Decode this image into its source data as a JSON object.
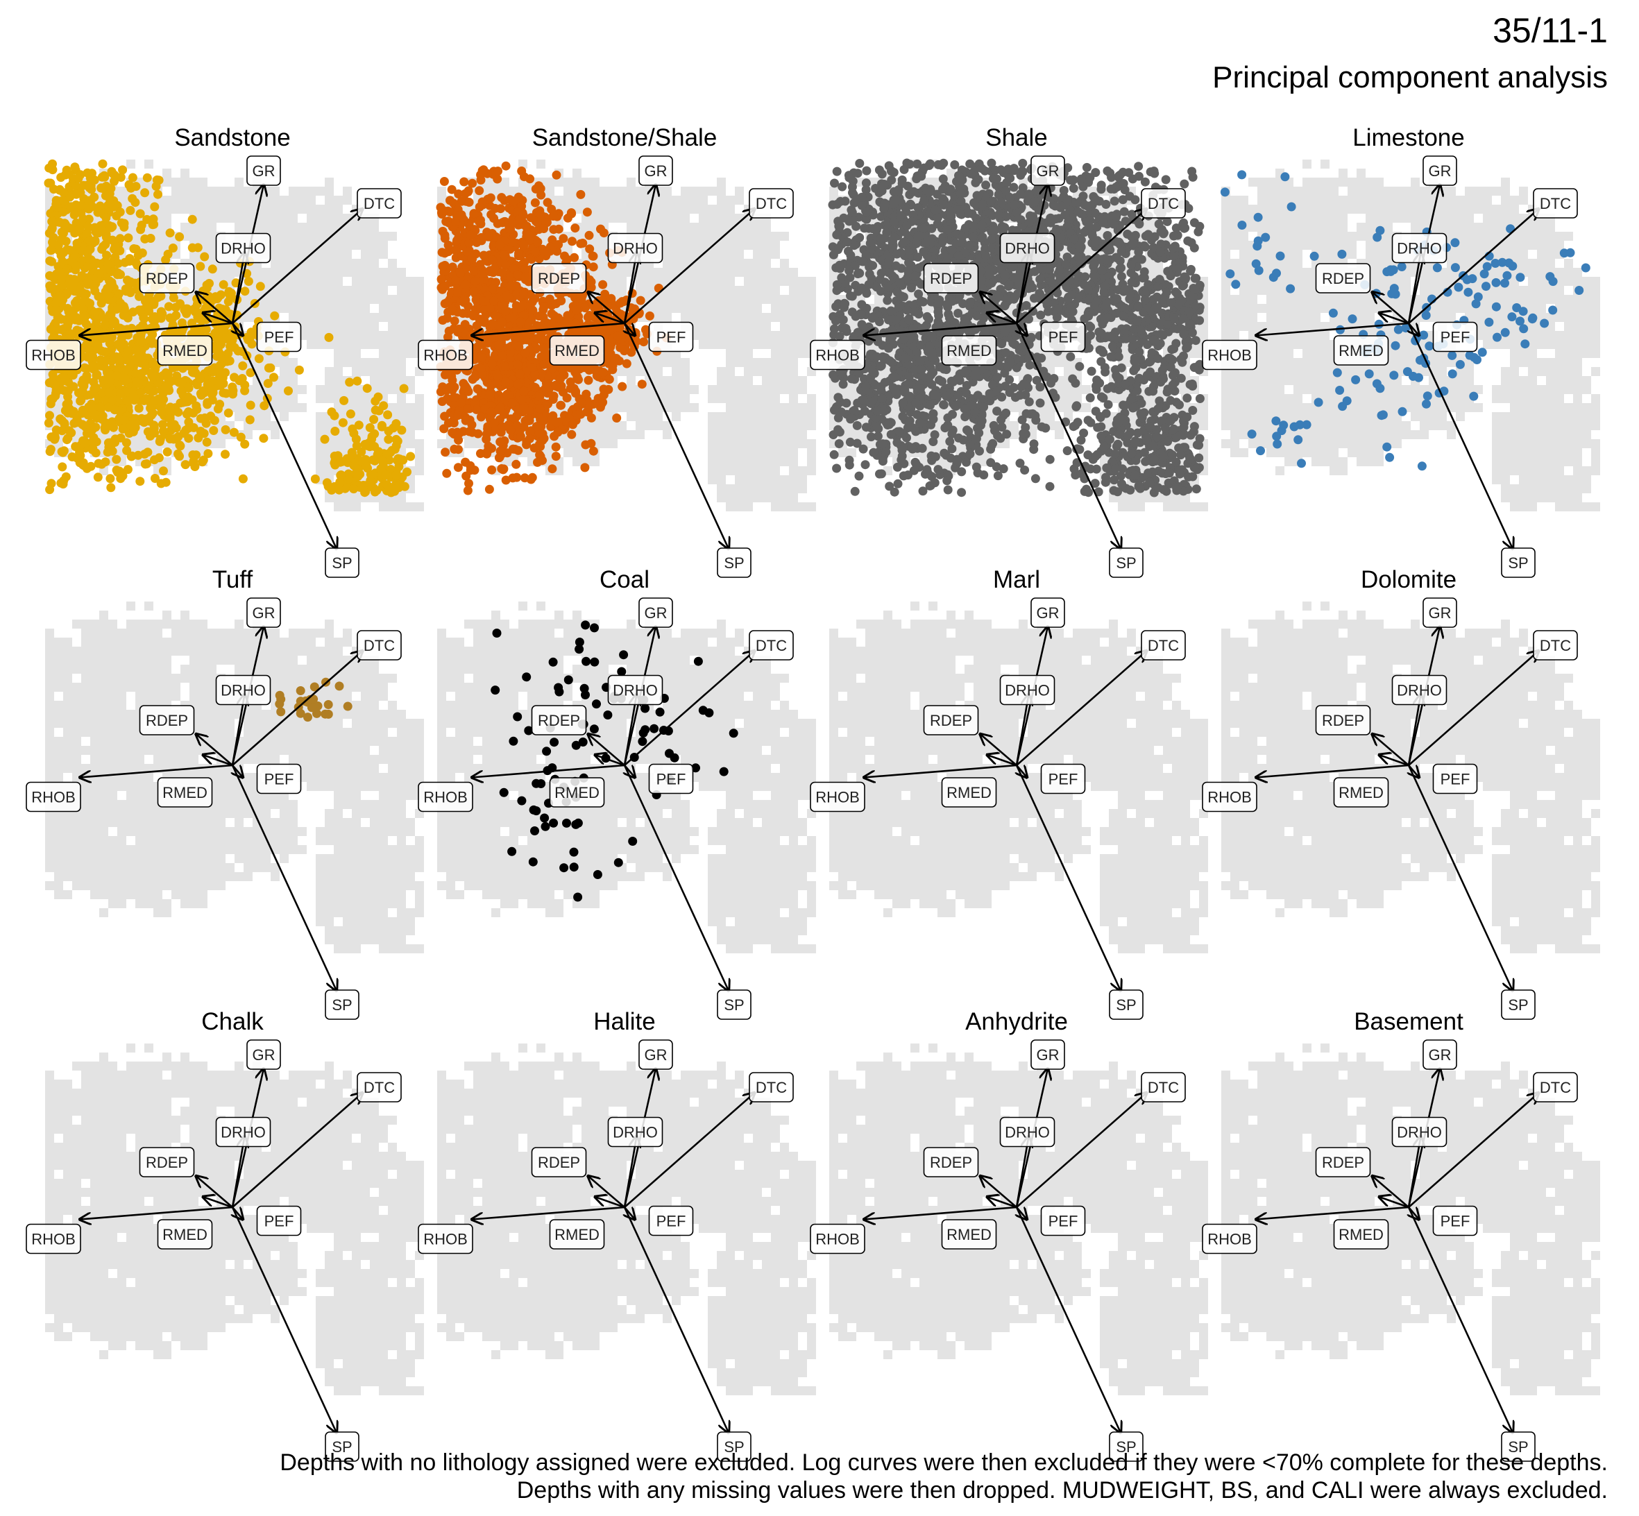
{
  "header": {
    "title": "35/11-1",
    "subtitle": "Principal component analysis"
  },
  "caption": {
    "line1": "Depths with no lithology assigned were excluded. Log curves were then excluded if they were <70% complete for these depths.",
    "line2": "Depths with any missing values were then dropped. MUDWEIGHT, BS, and CALI were always excluded."
  },
  "chart_data": {
    "type": "scatter",
    "subtype": "pca-biplot-small-multiples",
    "background_points_color": "#e3e3e3",
    "axes_visible": false,
    "grid": false,
    "loadings": [
      {
        "name": "GR",
        "pc1": 0.18,
        "pc2": 0.8
      },
      {
        "name": "DTC",
        "pc1": 0.75,
        "pc2": 0.66
      },
      {
        "name": "DRHO",
        "pc1": 0.07,
        "pc2": 0.41
      },
      {
        "name": "RDEP",
        "pc1": -0.21,
        "pc2": 0.18
      },
      {
        "name": "PEF",
        "pc1": 0.06,
        "pc2": -0.07
      },
      {
        "name": "RHOB",
        "pc1": -0.88,
        "pc2": -0.07
      },
      {
        "name": "RMED",
        "pc1": -0.17,
        "pc2": 0.06
      },
      {
        "name": "SP",
        "pc1": 0.6,
        "pc2": -1.3
      }
    ],
    "panels": [
      {
        "name": "Sandstone",
        "color": "#E6AB02",
        "n_points": 2600,
        "clusters": [
          {
            "x": -1.05,
            "y": 0.3,
            "sx": 0.35,
            "sy": 0.28,
            "w": 0.28
          },
          {
            "x": -0.7,
            "y": -0.35,
            "sx": 0.38,
            "sy": 0.3,
            "w": 0.4
          },
          {
            "x": -0.85,
            "y": 0.75,
            "sx": 0.18,
            "sy": 0.22,
            "w": 0.07
          },
          {
            "x": 0.82,
            "y": -1.05,
            "sx": 0.14,
            "sy": 0.28,
            "w": 0.15
          },
          {
            "x": 0.45,
            "y": -1.35,
            "sx": 0.12,
            "sy": 0.08,
            "w": 0.05
          },
          {
            "x": -0.1,
            "y": -0.05,
            "sx": 0.12,
            "sy": 0.15,
            "w": 0.05
          }
        ]
      },
      {
        "name": "Sandstone/Shale",
        "color": "#D95F02",
        "n_points": 1800,
        "clusters": [
          {
            "x": -0.8,
            "y": 0.35,
            "sx": 0.28,
            "sy": 0.3,
            "w": 0.45
          },
          {
            "x": -0.65,
            "y": -0.35,
            "sx": 0.26,
            "sy": 0.25,
            "w": 0.4
          },
          {
            "x": -0.15,
            "y": -0.05,
            "sx": 0.14,
            "sy": 0.15,
            "w": 0.15
          }
        ]
      },
      {
        "name": "Shale",
        "color": "#616161",
        "n_points": 3600,
        "clusters": [
          {
            "x": -0.55,
            "y": 0.4,
            "sx": 0.45,
            "sy": 0.38,
            "w": 0.3
          },
          {
            "x": 0.3,
            "y": 0.45,
            "sx": 0.45,
            "sy": 0.3,
            "w": 0.25
          },
          {
            "x": -0.55,
            "y": -0.4,
            "sx": 0.4,
            "sy": 0.32,
            "w": 0.2
          },
          {
            "x": 0.8,
            "y": -0.75,
            "sx": 0.22,
            "sy": 0.35,
            "w": 0.15
          },
          {
            "x": 0.9,
            "y": 0.05,
            "sx": 0.35,
            "sy": 0.14,
            "w": 0.1
          }
        ]
      },
      {
        "name": "Limestone",
        "color": "#3A7DB8",
        "n_points": 170,
        "clusters": [
          {
            "x": 0.35,
            "y": 0.25,
            "sx": 0.35,
            "sy": 0.22,
            "w": 0.45
          },
          {
            "x": -0.1,
            "y": -0.25,
            "sx": 0.28,
            "sy": 0.25,
            "w": 0.3
          },
          {
            "x": -0.95,
            "y": 0.55,
            "sx": 0.18,
            "sy": 0.3,
            "w": 0.2
          },
          {
            "x": -0.7,
            "y": -0.65,
            "sx": 0.1,
            "sy": 0.06,
            "w": 0.05
          }
        ]
      },
      {
        "name": "Tuff",
        "color": "#B07E24",
        "n_points": 25,
        "clusters": [
          {
            "x": 0.45,
            "y": 0.35,
            "sx": 0.09,
            "sy": 0.06,
            "w": 1.0
          }
        ]
      },
      {
        "name": "Coal",
        "color": "#000000",
        "n_points": 90,
        "clusters": [
          {
            "x": -0.3,
            "y": 0.4,
            "sx": 0.22,
            "sy": 0.35,
            "w": 0.45
          },
          {
            "x": 0.15,
            "y": 0.2,
            "sx": 0.3,
            "sy": 0.18,
            "w": 0.25
          },
          {
            "x": -0.35,
            "y": -0.35,
            "sx": 0.15,
            "sy": 0.22,
            "w": 0.3
          }
        ]
      },
      {
        "name": "Marl",
        "color": "#000000",
        "n_points": 0,
        "clusters": []
      },
      {
        "name": "Dolomite",
        "color": "#000000",
        "n_points": 0,
        "clusters": []
      },
      {
        "name": "Chalk",
        "color": "#000000",
        "n_points": 0,
        "clusters": []
      },
      {
        "name": "Halite",
        "color": "#000000",
        "n_points": 0,
        "clusters": []
      },
      {
        "name": "Anhydrite",
        "color": "#000000",
        "n_points": 0,
        "clusters": []
      },
      {
        "name": "Basement",
        "color": "#000000",
        "n_points": 0,
        "clusters": []
      }
    ]
  }
}
